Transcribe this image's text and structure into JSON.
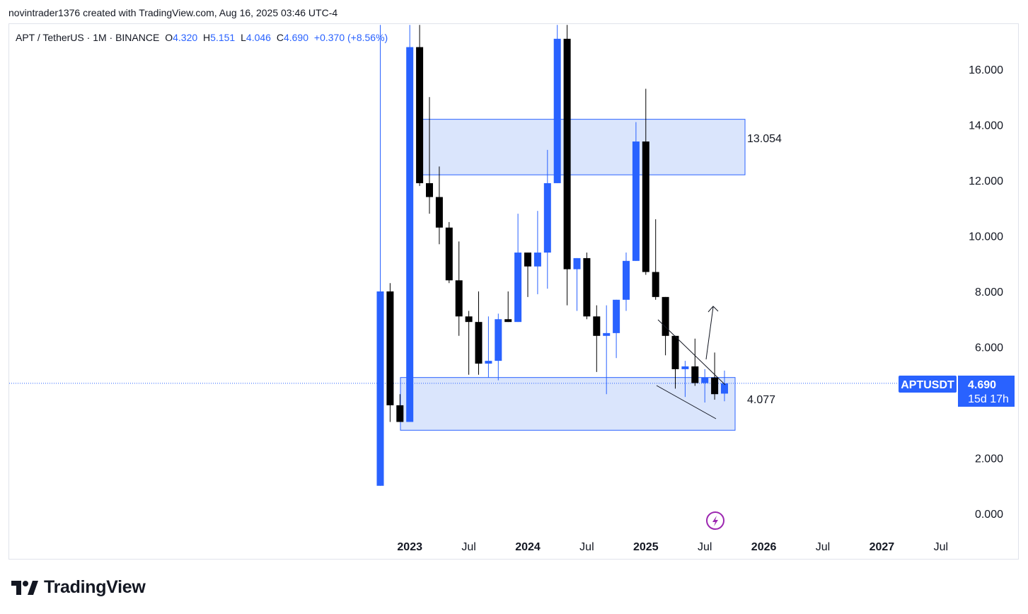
{
  "attribution": "novintrader1376 created with TradingView.com, Aug 16, 2025 03:46 UTC-4",
  "legend": {
    "symbol": "APT / TetherUS · 1M · BINANCE",
    "open_label": "O",
    "open": "4.320",
    "high_label": "H",
    "high": "5.151",
    "low_label": "L",
    "low": "4.046",
    "close_label": "C",
    "close": "4.690",
    "change": "+0.370 (+8.56%)"
  },
  "price_tag": {
    "ticker": "APTUSDT",
    "price": "4.690",
    "countdown": "15d 17h"
  },
  "zone_labels": {
    "upper": "13.054",
    "lower": "4.077"
  },
  "brand": "TradingView",
  "icons": {
    "alert": "lightning-icon",
    "logo": "tradingview-logo-icon"
  },
  "colors": {
    "up": "#2962ff",
    "down": "#000000",
    "zone_fill": "#d4e0fc",
    "zone_border": "#2962ff",
    "accent": "#9c27b0"
  },
  "chart_data": {
    "type": "candlestick",
    "interval": "1M",
    "ylim": [
      -0.5,
      17.5
    ],
    "y_ticks": [
      "0.000",
      "2.000",
      "4.000",
      "6.000",
      "8.000",
      "10.000",
      "12.000",
      "14.000",
      "16.000"
    ],
    "x_ticks": [
      "2023",
      "Jul",
      "2024",
      "Jul",
      "2025",
      "Jul",
      "2026",
      "Jul",
      "2027",
      "Jul"
    ],
    "candles": [
      {
        "o": 1.0,
        "h": 17.6,
        "l": 1.0,
        "c": 8.0
      },
      {
        "o": 8.0,
        "h": 8.3,
        "l": 3.3,
        "c": 3.9
      },
      {
        "o": 3.9,
        "h": 4.3,
        "l": 3.3,
        "c": 3.3
      },
      {
        "o": 3.3,
        "h": 17.6,
        "l": 3.3,
        "c": 16.8
      },
      {
        "o": 16.8,
        "h": 17.6,
        "l": 11.8,
        "c": 11.9
      },
      {
        "o": 11.9,
        "h": 15.0,
        "l": 10.8,
        "c": 11.4
      },
      {
        "o": 11.4,
        "h": 12.5,
        "l": 9.7,
        "c": 10.3
      },
      {
        "o": 10.3,
        "h": 10.5,
        "l": 8.3,
        "c": 8.4
      },
      {
        "o": 8.4,
        "h": 9.8,
        "l": 6.4,
        "c": 7.1
      },
      {
        "o": 7.1,
        "h": 7.3,
        "l": 5.0,
        "c": 6.9
      },
      {
        "o": 6.9,
        "h": 8.0,
        "l": 5.0,
        "c": 5.4
      },
      {
        "o": 5.4,
        "h": 7.1,
        "l": 4.9,
        "c": 5.5
      },
      {
        "o": 5.5,
        "h": 7.2,
        "l": 4.8,
        "c": 7.0
      },
      {
        "o": 7.0,
        "h": 8.0,
        "l": 6.9,
        "c": 6.9
      },
      {
        "o": 6.9,
        "h": 10.8,
        "l": 6.9,
        "c": 9.4
      },
      {
        "o": 9.4,
        "h": 9.4,
        "l": 7.8,
        "c": 8.9
      },
      {
        "o": 8.9,
        "h": 10.9,
        "l": 7.9,
        "c": 9.4
      },
      {
        "o": 9.4,
        "h": 13.1,
        "l": 8.1,
        "c": 11.9
      },
      {
        "o": 11.9,
        "h": 17.6,
        "l": 11.9,
        "c": 17.1
      },
      {
        "o": 17.1,
        "h": 17.6,
        "l": 7.5,
        "c": 8.8
      },
      {
        "o": 8.8,
        "h": 9.2,
        "l": 7.3,
        "c": 9.2
      },
      {
        "o": 9.2,
        "h": 9.4,
        "l": 7.0,
        "c": 7.1
      },
      {
        "o": 7.1,
        "h": 7.5,
        "l": 5.1,
        "c": 6.4
      },
      {
        "o": 6.4,
        "h": 7.5,
        "l": 4.3,
        "c": 6.5
      },
      {
        "o": 6.5,
        "h": 7.7,
        "l": 5.6,
        "c": 7.7
      },
      {
        "o": 7.7,
        "h": 9.4,
        "l": 7.3,
        "c": 9.1
      },
      {
        "o": 9.1,
        "h": 14.1,
        "l": 9.1,
        "c": 13.4
      },
      {
        "o": 13.4,
        "h": 15.3,
        "l": 8.6,
        "c": 8.7
      },
      {
        "o": 8.7,
        "h": 10.6,
        "l": 7.7,
        "c": 7.8
      },
      {
        "o": 7.8,
        "h": 7.8,
        "l": 5.7,
        "c": 6.4
      },
      {
        "o": 6.4,
        "h": 6.4,
        "l": 4.5,
        "c": 5.2
      },
      {
        "o": 5.2,
        "h": 5.5,
        "l": 4.2,
        "c": 5.3
      },
      {
        "o": 5.3,
        "h": 6.3,
        "l": 4.6,
        "c": 4.7
      },
      {
        "o": 4.7,
        "h": 5.2,
        "l": 4.0,
        "c": 4.9
      },
      {
        "o": 4.9,
        "h": 5.8,
        "l": 4.1,
        "c": 4.3
      },
      {
        "o": 4.32,
        "h": 5.151,
        "l": 4.046,
        "c": 4.69
      }
    ],
    "zones": [
      {
        "top": 14.2,
        "bottom": 12.2,
        "label": "13.054"
      },
      {
        "top": 4.9,
        "bottom": 3.0,
        "label": "4.077"
      }
    ],
    "last_price": 4.69
  }
}
